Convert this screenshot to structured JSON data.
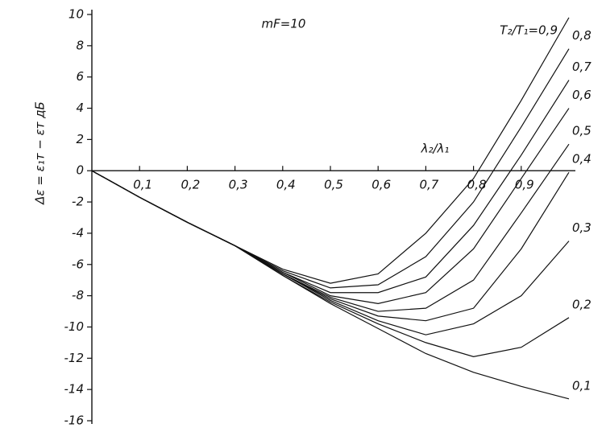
{
  "chart_data": {
    "type": "line",
    "annotation": "mF=10",
    "x_label": "λ₂/λ₁",
    "y_label": "Δε = ε₁т − εт   дБ",
    "x": [
      0,
      0.1,
      0.2,
      0.3,
      0.4,
      0.5,
      0.6,
      0.7,
      0.8,
      0.9,
      1.0
    ],
    "xlim": [
      0,
      1
    ],
    "xticks": [
      {
        "value": 0.1,
        "label": "0,1"
      },
      {
        "value": 0.2,
        "label": "0,2"
      },
      {
        "value": 0.3,
        "label": "0,3"
      },
      {
        "value": 0.4,
        "label": "0,4"
      },
      {
        "value": 0.5,
        "label": "0,5"
      },
      {
        "value": 0.6,
        "label": "0,6"
      },
      {
        "value": 0.7,
        "label": "0,7"
      },
      {
        "value": 0.8,
        "label": "0,8"
      },
      {
        "value": 0.9,
        "label": "0,9"
      }
    ],
    "ylim": [
      -16,
      10
    ],
    "yticks": [
      -16,
      -14,
      -12,
      -10,
      -8,
      -6,
      -4,
      -2,
      0,
      2,
      4,
      6,
      8,
      10
    ],
    "grid": false,
    "series": [
      {
        "name": "T₂/T₁=0,9",
        "color": "#111111",
        "values": [
          0,
          -1.7,
          -3.3,
          -4.8,
          -6.3,
          -7.2,
          -6.6,
          -4.0,
          -0.5,
          4.5,
          9.8
        ]
      },
      {
        "name": "0,8",
        "color": "#111111",
        "values": [
          0,
          -1.7,
          -3.3,
          -4.8,
          -6.4,
          -7.5,
          -7.3,
          -5.5,
          -2.0,
          2.8,
          7.8
        ]
      },
      {
        "name": "0,7",
        "color": "#111111",
        "values": [
          0,
          -1.7,
          -3.3,
          -4.8,
          -6.5,
          -7.8,
          -7.8,
          -6.8,
          -3.5,
          1.0,
          5.8
        ]
      },
      {
        "name": "0,6",
        "color": "#111111",
        "values": [
          0,
          -1.7,
          -3.3,
          -4.8,
          -6.5,
          -8.0,
          -8.5,
          -7.8,
          -5.0,
          -0.5,
          4.0
        ]
      },
      {
        "name": "0,5",
        "color": "#111111",
        "values": [
          0,
          -1.7,
          -3.3,
          -4.8,
          -6.6,
          -8.1,
          -9.0,
          -8.8,
          -7.0,
          -2.7,
          1.7
        ]
      },
      {
        "name": "0,4",
        "color": "#111111",
        "values": [
          0,
          -1.7,
          -3.3,
          -4.8,
          -6.6,
          -8.2,
          -9.3,
          -9.6,
          -8.8,
          -5.0,
          -0.1
        ]
      },
      {
        "name": "0,3",
        "color": "#111111",
        "values": [
          0,
          -1.7,
          -3.3,
          -4.8,
          -6.6,
          -8.3,
          -9.6,
          -10.5,
          -9.8,
          -8.0,
          -4.5
        ]
      },
      {
        "name": "0,2",
        "color": "#111111",
        "values": [
          0,
          -1.7,
          -3.3,
          -4.8,
          -6.7,
          -8.4,
          -9.8,
          -11.0,
          -11.9,
          -11.3,
          -9.4
        ]
      },
      {
        "name": "0,1",
        "color": "#111111",
        "values": [
          0,
          -1.7,
          -3.3,
          -4.8,
          -6.7,
          -8.5,
          -10.1,
          -11.7,
          -12.9,
          -13.8,
          -14.6
        ]
      }
    ]
  }
}
